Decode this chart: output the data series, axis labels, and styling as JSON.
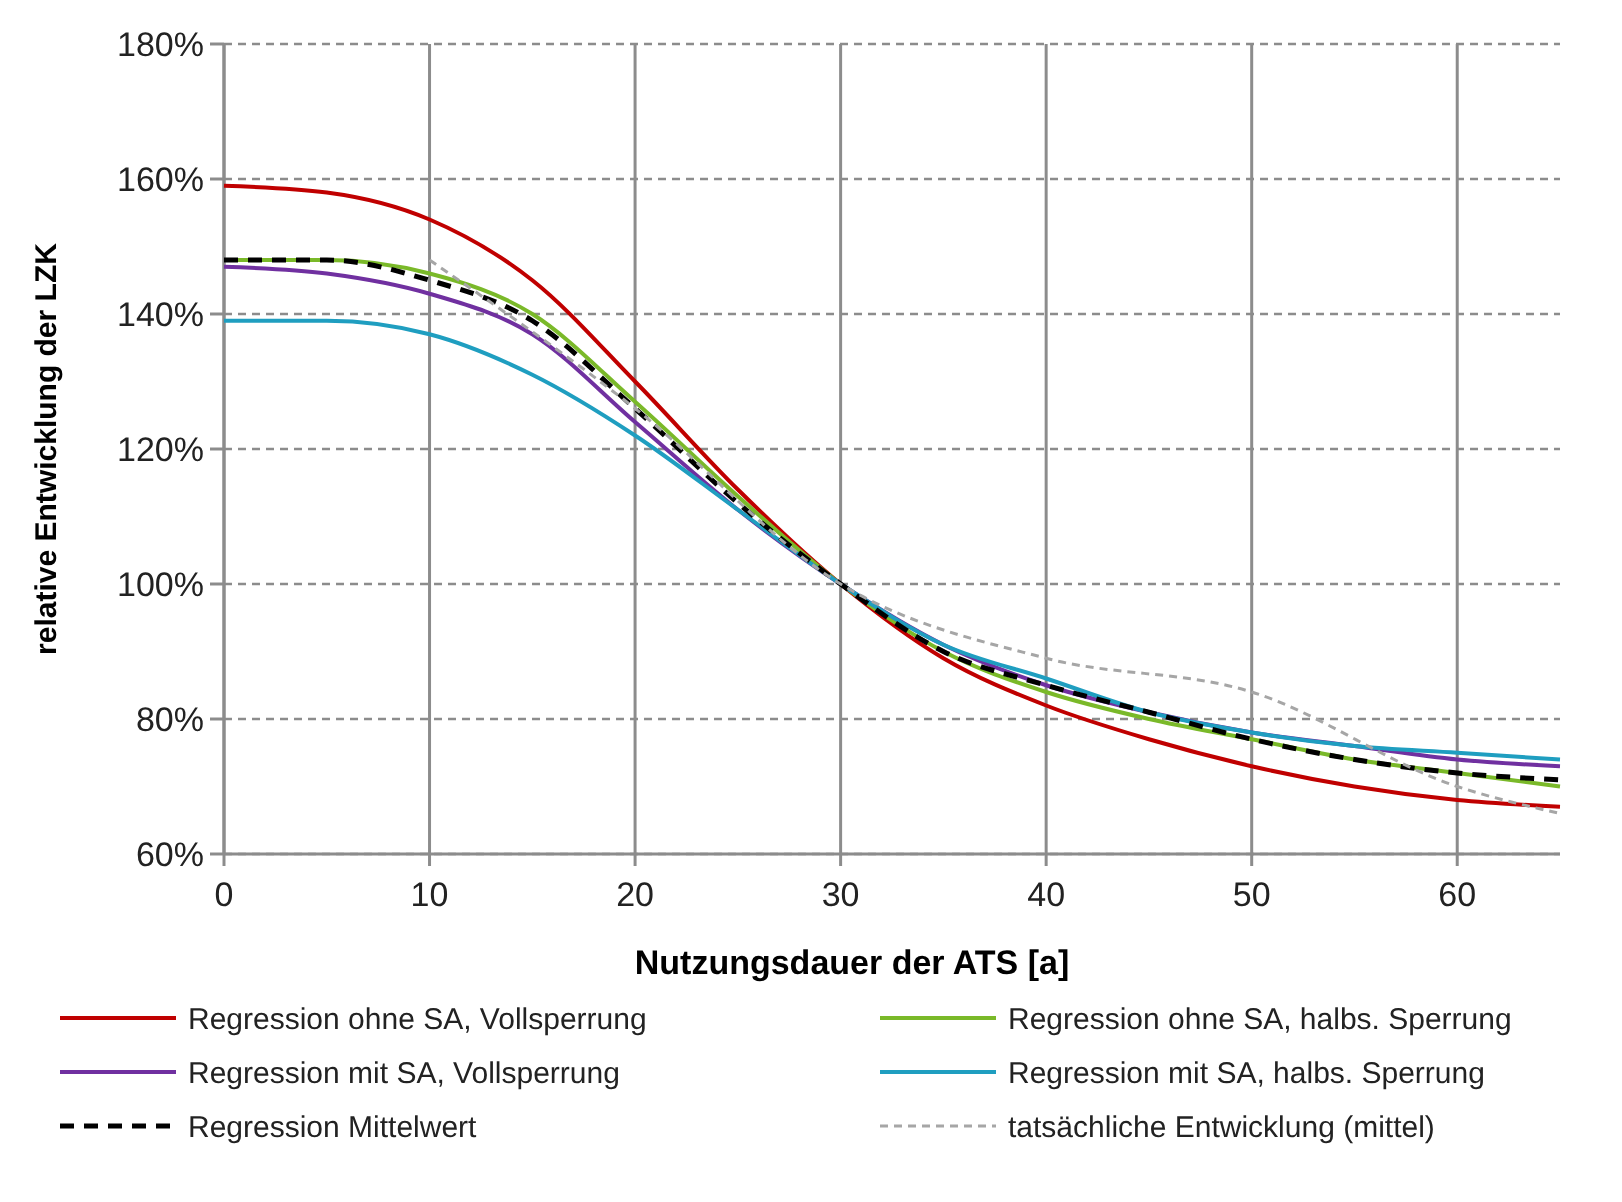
{
  "chart_data": {
    "type": "line",
    "xlabel": "Nutzungsdauer der ATS [a]",
    "ylabel": "relative Entwicklung der LZK",
    "x": [
      0,
      5,
      10,
      15,
      20,
      25,
      30,
      35,
      40,
      45,
      50,
      55,
      60,
      65
    ],
    "xlim": [
      0,
      65
    ],
    "xticks": [
      0,
      10,
      20,
      30,
      40,
      50,
      60
    ],
    "ylim": [
      60,
      180
    ],
    "yticks": [
      {
        "value": 60,
        "label": "60%"
      },
      {
        "value": 80,
        "label": "80%"
      },
      {
        "value": 100,
        "label": "100%"
      },
      {
        "value": 120,
        "label": "120%"
      },
      {
        "value": 140,
        "label": "140%"
      },
      {
        "value": 160,
        "label": "160%"
      },
      {
        "value": 180,
        "label": "180%"
      }
    ],
    "grid": true,
    "legend": "bottom",
    "marker": "none",
    "series": [
      {
        "name": "Regression ohne SA, Vollsperrung",
        "color": "#c00000",
        "values": [
          159,
          158,
          154,
          145,
          130,
          114,
          100,
          89,
          82,
          77,
          73,
          70,
          68,
          67
        ]
      },
      {
        "name": "Regression ohne SA, halbs. Sperrung",
        "color": "#7ab929",
        "values": [
          148,
          148,
          146,
          140,
          127,
          113,
          100,
          90,
          84,
          80,
          77,
          74,
          72,
          70
        ]
      },
      {
        "name": "Regression mit SA, Vollsperrung",
        "color": "#7030a0",
        "values": [
          147,
          146,
          143,
          137,
          124,
          111,
          100,
          91,
          85,
          81,
          78,
          76,
          74,
          73
        ]
      },
      {
        "name": "Regression mit SA, halbs. Sperrung",
        "color": "#1f9ec0",
        "values": [
          139,
          139,
          137,
          131,
          122,
          111,
          100,
          91,
          86,
          81,
          78,
          76,
          75,
          74
        ]
      },
      {
        "name": "Regression Mittelwert",
        "color": "#000000",
        "line_style": "dashed",
        "values": [
          148,
          148,
          145,
          139,
          126,
          112,
          100,
          90,
          85,
          81,
          77,
          74,
          72,
          71
        ]
      },
      {
        "name": "tatsächliche Entwicklung (mittel)",
        "color": "#a6a6a6",
        "line_style": "dotted",
        "x": [
          10,
          20,
          30,
          40,
          50,
          60,
          65
        ],
        "values": [
          148,
          126,
          100,
          89,
          84,
          70,
          66
        ]
      }
    ]
  }
}
